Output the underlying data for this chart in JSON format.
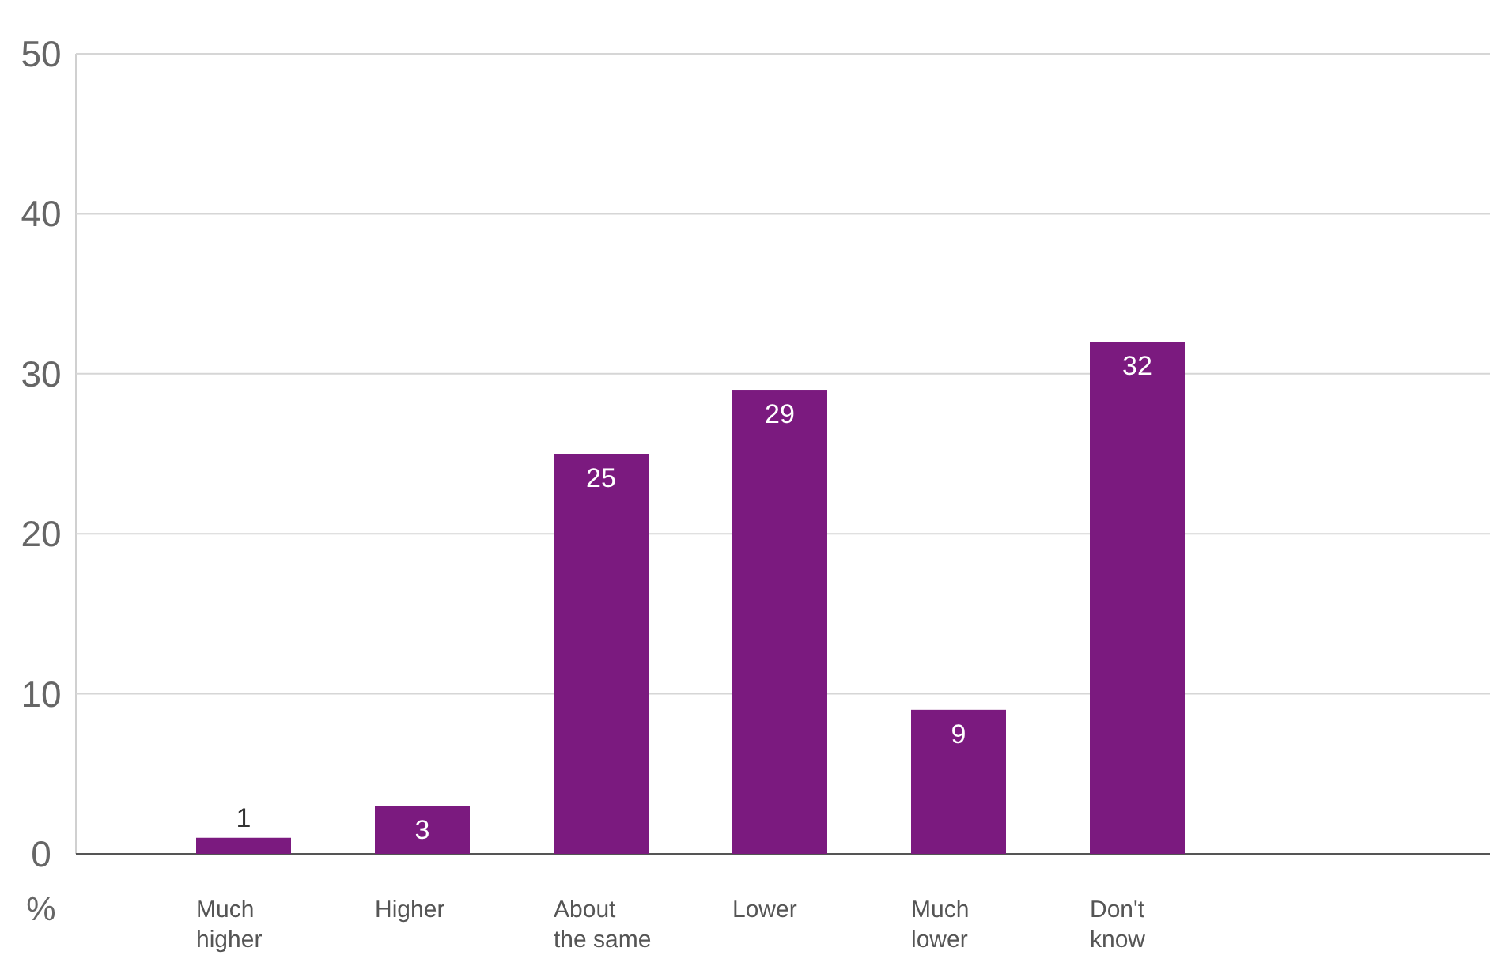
{
  "chart_data": {
    "type": "bar",
    "ylabel": "%",
    "categories": [
      "Much higher",
      "Higher",
      "About the same",
      "Lower",
      "Much lower",
      "Don't know"
    ],
    "values": [
      1,
      3,
      25,
      29,
      9,
      32
    ],
    "color": "#7b1a7f",
    "ylim": [
      0,
      50
    ],
    "yticks": [
      0,
      10,
      20,
      30,
      40,
      50
    ],
    "grid": "y",
    "data_labels": true
  }
}
